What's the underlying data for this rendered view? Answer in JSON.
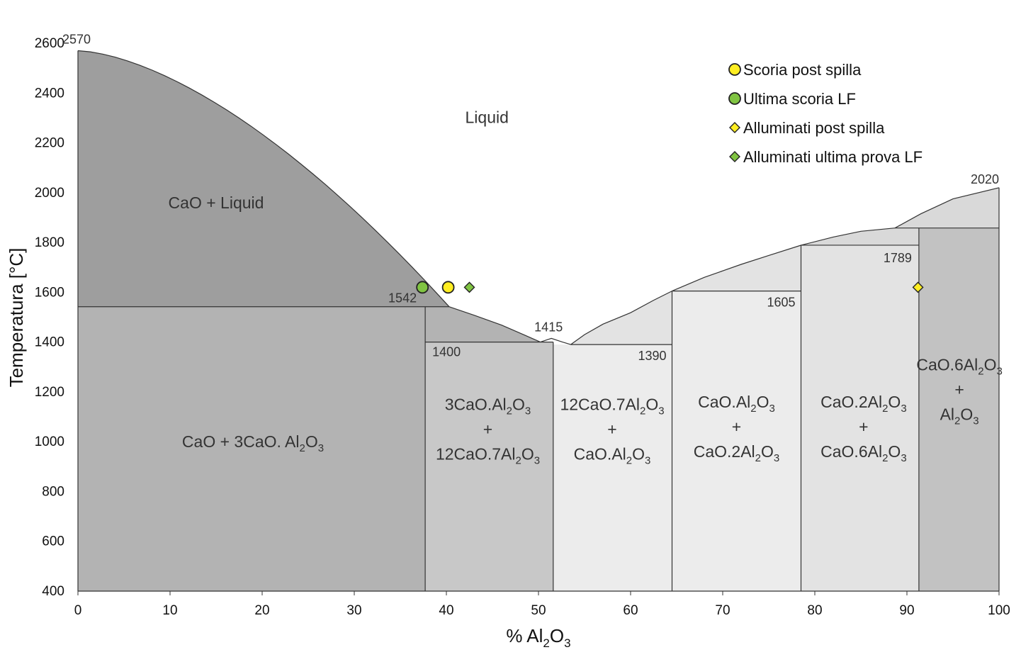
{
  "chart_data": {
    "type": "phase-diagram",
    "title": "",
    "xlabel": {
      "main": "% Al",
      "sub": "2",
      "main2": "O",
      "sub2": "3"
    },
    "ylabel": "Temperatura [°C]",
    "xlim": [
      0,
      100
    ],
    "ylim": [
      400,
      2600
    ],
    "xticks": [
      "0",
      "10",
      "20",
      "30",
      "40",
      "50",
      "60",
      "70",
      "80",
      "90",
      "100"
    ],
    "yticks": [
      "400",
      "600",
      "800",
      "1000",
      "1200",
      "1400",
      "1600",
      "1800",
      "2000",
      "2200",
      "2400",
      "2600"
    ],
    "xtick_values": [
      0,
      10,
      20,
      30,
      40,
      50,
      60,
      70,
      80,
      90,
      100
    ],
    "ytick_values": [
      400,
      600,
      800,
      1000,
      1200,
      1400,
      1600,
      1800,
      2000,
      2200,
      2400,
      2600
    ],
    "grid": false,
    "legend_position": "top-right",
    "liquid_label": "Liquid",
    "temperature_notes": [
      {
        "text": "2570",
        "x": 0,
        "y": 2570
      },
      {
        "text": "1542",
        "x": 37.7,
        "y": 1542
      },
      {
        "text": "1400",
        "x": 37.7,
        "y": 1400
      },
      {
        "text": "1415",
        "x": 51.4,
        "y": 1415
      },
      {
        "text": "1390",
        "x": 64.5,
        "y": 1390
      },
      {
        "text": "1605",
        "x": 78.5,
        "y": 1605
      },
      {
        "text": "1789",
        "x": 91.3,
        "y": 1789
      },
      {
        "text": "2020",
        "x": 100,
        "y": 2020
      }
    ],
    "regions": [
      {
        "id": "cao-liquid",
        "lines": [
          [
            {
              "t": "CaO + Liquid"
            }
          ]
        ],
        "x": 15,
        "y": 1960
      },
      {
        "id": "cao-3cao-al2o3",
        "lines": [
          [
            {
              "t": "CaO + 3CaO. Al"
            },
            {
              "s": "2"
            },
            {
              "t": "O"
            },
            {
              "s": "3"
            }
          ]
        ],
        "x": 19,
        "y": 1000
      },
      {
        "id": "3cao-12cao7",
        "lines": [
          [
            {
              "t": "3CaO.Al"
            },
            {
              "s": "2"
            },
            {
              "t": "O"
            },
            {
              "s": "3"
            }
          ],
          [
            {
              "t": "+"
            }
          ],
          [
            {
              "t": "12CaO.7Al"
            },
            {
              "s": "2"
            },
            {
              "t": "O"
            },
            {
              "s": "3"
            }
          ]
        ],
        "x": 44.5,
        "y": 1050
      },
      {
        "id": "12cao7-caoal2o3",
        "lines": [
          [
            {
              "t": "12CaO.7Al"
            },
            {
              "s": "2"
            },
            {
              "t": "O"
            },
            {
              "s": "3"
            }
          ],
          [
            {
              "t": "+"
            }
          ],
          [
            {
              "t": "CaO.Al"
            },
            {
              "s": "2"
            },
            {
              "t": "O"
            },
            {
              "s": "3"
            }
          ]
        ],
        "x": 58,
        "y": 1050
      },
      {
        "id": "caoal2o3-cao2al2o3",
        "lines": [
          [
            {
              "t": "CaO.Al"
            },
            {
              "s": "2"
            },
            {
              "t": "O"
            },
            {
              "s": "3"
            }
          ],
          [
            {
              "t": "+"
            }
          ],
          [
            {
              "t": "CaO.2Al"
            },
            {
              "s": "2"
            },
            {
              "t": "O"
            },
            {
              "s": "3"
            }
          ]
        ],
        "x": 71.5,
        "y": 1060
      },
      {
        "id": "cao2al2o3-cao6al2o3",
        "lines": [
          [
            {
              "t": "CaO.2Al"
            },
            {
              "s": "2"
            },
            {
              "t": "O"
            },
            {
              "s": "3"
            }
          ],
          [
            {
              "t": "+"
            }
          ],
          [
            {
              "t": "CaO.6Al"
            },
            {
              "s": "2"
            },
            {
              "t": "O"
            },
            {
              "s": "3"
            }
          ]
        ],
        "x": 85.3,
        "y": 1060
      },
      {
        "id": "cao6al2o3-al2o3",
        "lines": [
          [
            {
              "t": "CaO.6Al"
            },
            {
              "s": "2"
            },
            {
              "t": "O"
            },
            {
              "s": "3"
            }
          ],
          [
            {
              "t": "+"
            }
          ],
          [
            {
              "t": "Al"
            },
            {
              "s": "2"
            },
            {
              "t": "O"
            },
            {
              "s": "3"
            }
          ]
        ],
        "x": 95.7,
        "y": 1210
      }
    ],
    "series": [
      {
        "name": "Scoria post spilla",
        "marker": "circle",
        "color": "#ffee22",
        "points": [
          [
            40.2,
            1620
          ]
        ]
      },
      {
        "name": "Ultima scoria LF",
        "marker": "circle",
        "color": "#80c442",
        "points": [
          [
            37.4,
            1620
          ]
        ]
      },
      {
        "name": "Alluminati post spilla",
        "marker": "diamond",
        "color": "#ffee22",
        "points": [
          [
            91.2,
            1620
          ]
        ]
      },
      {
        "name": "Alluminati ultima prova LF",
        "marker": "diamond",
        "color": "#80c442",
        "points": [
          [
            42.5,
            1620
          ]
        ]
      }
    ],
    "colors": {
      "dark": "#9e9e9e",
      "mid": "#b3b3b3",
      "midlight": "#c8c8c8",
      "light": "#ececec",
      "lighter": "#e3e3e3",
      "pale": "#d9d9d9",
      "cao6": "#c2c2c2",
      "line": "#333333"
    }
  }
}
